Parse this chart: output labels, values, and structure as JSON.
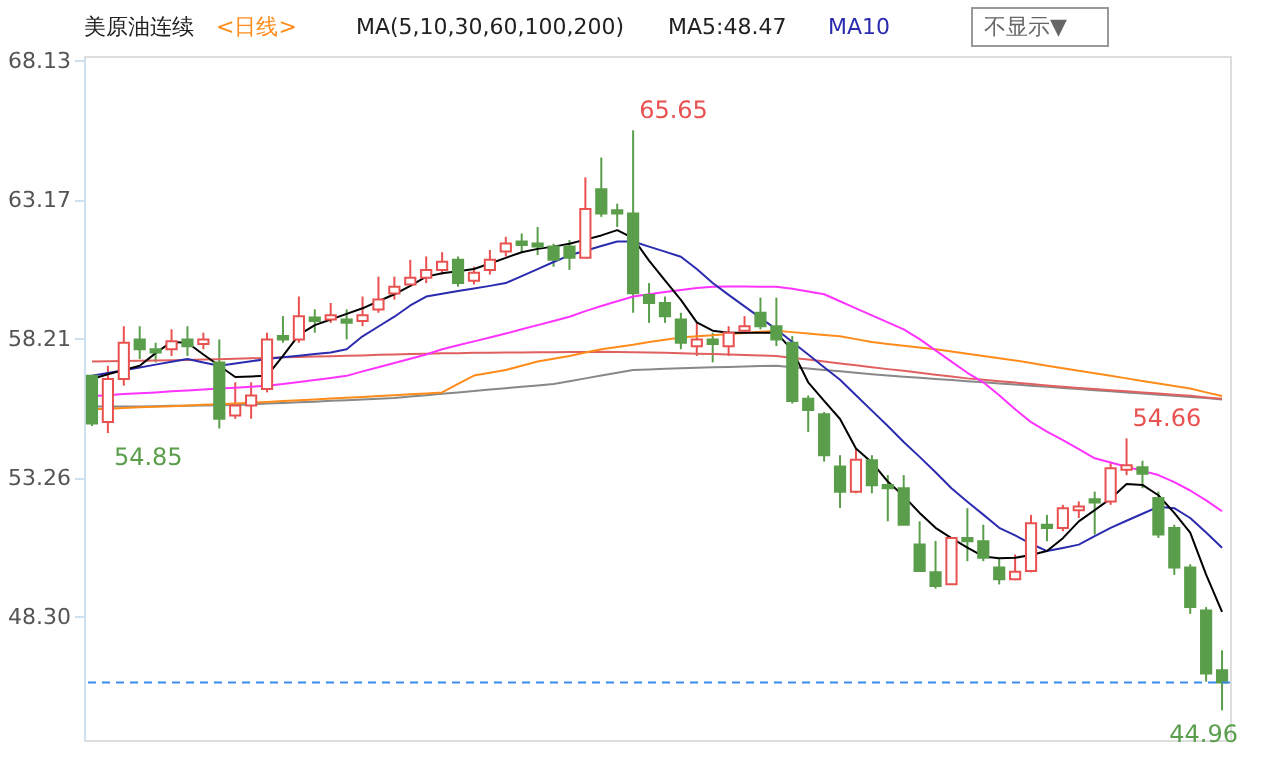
{
  "chart_data": {
    "type": "candlestick",
    "title": "美原油连续",
    "annotations": [
      "<日线>",
      "MA(5,10,30,60,100,200)",
      "MA5:48.47",
      "MA10",
      "不显示▼",
      "65.65",
      "54.85",
      "54.66",
      "44.96"
    ],
    "categories": [
      null,
      null,
      null,
      null,
      null,
      null,
      null,
      null,
      null,
      null,
      null,
      null,
      null,
      null,
      null,
      null,
      null,
      null,
      null,
      null,
      null,
      null,
      null,
      null,
      null,
      null,
      null,
      null,
      null,
      null,
      null,
      null,
      null,
      null,
      null,
      null,
      null,
      null,
      null,
      null,
      null,
      null,
      null,
      null,
      null,
      null,
      null,
      null,
      null,
      null,
      null,
      null,
      null,
      null,
      null,
      null,
      null,
      null,
      null,
      null,
      null,
      null,
      null,
      null,
      null,
      null,
      null,
      null,
      null,
      null,
      null,
      null
    ],
    "ohlc": [
      [
        56.89,
        56.9,
        55.1,
        55.19
      ],
      [
        55.24,
        57.25,
        54.85,
        56.78
      ],
      [
        56.78,
        58.66,
        56.54,
        58.07
      ],
      [
        58.19,
        58.66,
        57.49,
        57.84
      ],
      [
        57.84,
        58.07,
        57.37,
        57.72
      ],
      [
        57.84,
        58.55,
        57.6,
        58.12
      ],
      [
        58.19,
        58.66,
        57.6,
        57.95
      ],
      [
        58.03,
        58.43,
        57.84,
        58.19
      ],
      [
        57.37,
        58.19,
        55.01,
        55.36
      ],
      [
        55.48,
        56.66,
        55.36,
        55.83
      ],
      [
        55.83,
        56.66,
        55.36,
        56.19
      ],
      [
        56.42,
        58.43,
        56.3,
        58.19
      ],
      [
        58.31,
        59.02,
        58.07,
        58.19
      ],
      [
        58.19,
        59.72,
        58.07,
        59.02
      ],
      [
        58.97,
        59.26,
        58.43,
        58.85
      ],
      [
        58.9,
        59.49,
        58.78,
        59.05
      ],
      [
        58.9,
        59.26,
        58.19,
        58.78
      ],
      [
        58.85,
        59.72,
        58.66,
        59.05
      ],
      [
        59.26,
        60.43,
        59.14,
        59.61
      ],
      [
        59.83,
        60.43,
        59.61,
        60.07
      ],
      [
        60.15,
        61.03,
        60.07,
        60.39
      ],
      [
        60.39,
        61.15,
        60.2,
        60.67
      ],
      [
        60.67,
        61.3,
        60.5,
        60.96
      ],
      [
        61.03,
        61.15,
        60.07,
        60.2
      ],
      [
        60.28,
        60.78,
        60.15,
        60.57
      ],
      [
        60.67,
        61.38,
        60.5,
        61.03
      ],
      [
        61.33,
        61.85,
        61.15,
        61.61
      ],
      [
        61.68,
        61.97,
        61.27,
        61.56
      ],
      [
        61.61,
        62.2,
        61.2,
        61.5
      ],
      [
        61.5,
        61.6,
        60.78,
        61.03
      ],
      [
        61.5,
        61.73,
        60.67,
        61.1
      ],
      [
        61.1,
        63.97,
        61.1,
        62.84
      ],
      [
        63.55,
        64.68,
        62.56,
        62.68
      ],
      [
        62.8,
        63.03,
        62.2,
        62.68
      ],
      [
        62.68,
        65.65,
        59.14,
        59.84
      ],
      [
        59.77,
        60.2,
        58.78,
        59.49
      ],
      [
        59.49,
        59.72,
        58.78,
        59.02
      ],
      [
        58.9,
        59.14,
        57.84,
        58.07
      ],
      [
        57.95,
        58.78,
        57.6,
        58.19
      ],
      [
        58.19,
        58.43,
        57.37,
        58.03
      ],
      [
        57.95,
        58.66,
        57.6,
        58.43
      ],
      [
        58.5,
        59.02,
        58.43,
        58.66
      ],
      [
        59.14,
        59.68,
        58.55,
        58.66
      ],
      [
        58.66,
        59.68,
        57.95,
        58.19
      ],
      [
        58.07,
        58.31,
        55.9,
        55.99
      ],
      [
        56.07,
        56.19,
        54.89,
        55.67
      ],
      [
        55.52,
        55.6,
        53.83,
        54.06
      ],
      [
        53.66,
        54.06,
        52.18,
        52.76
      ],
      [
        52.76,
        54.3,
        52.7,
        53.9
      ],
      [
        53.88,
        54.06,
        52.7,
        52.99
      ],
      [
        53.0,
        53.35,
        51.7,
        52.88
      ],
      [
        52.88,
        53.35,
        51.58,
        51.58
      ],
      [
        50.87,
        51.7,
        49.93,
        49.93
      ],
      [
        49.88,
        51.0,
        49.3,
        49.39
      ],
      [
        49.46,
        51.11,
        49.46,
        51.11
      ],
      [
        51.11,
        52.17,
        50.28,
        50.99
      ],
      [
        50.99,
        51.58,
        50.28,
        50.4
      ],
      [
        50.05,
        50.4,
        49.45,
        49.63
      ],
      [
        49.63,
        50.52,
        49.6,
        49.9
      ],
      [
        49.93,
        51.93,
        49.88,
        51.63
      ],
      [
        51.58,
        51.93,
        50.99,
        51.46
      ],
      [
        51.46,
        52.29,
        51.35,
        52.17
      ],
      [
        52.1,
        52.41,
        51.82,
        52.23
      ],
      [
        52.49,
        52.76,
        51.23,
        52.37
      ],
      [
        52.41,
        53.83,
        52.29,
        53.59
      ],
      [
        53.54,
        54.66,
        53.35,
        53.7
      ],
      [
        53.63,
        53.86,
        52.88,
        53.4
      ],
      [
        52.53,
        52.76,
        51.11,
        51.23
      ],
      [
        51.46,
        51.58,
        49.79,
        50.05
      ],
      [
        50.05,
        50.17,
        48.4,
        48.64
      ],
      [
        48.52,
        48.64,
        45.98,
        46.27
      ],
      [
        46.39,
        47.1,
        44.96,
        45.95
      ]
    ],
    "colors": [
      "#5a9e4b",
      "#e8514f",
      "#e8514f",
      "#5a9e4b",
      "#5a9e4b",
      "#e8514f",
      "#5a9e4b",
      "#e8514f",
      "#5a9e4b",
      "#e8514f",
      "#e8514f",
      "#e8514f",
      "#5a9e4b",
      "#e8514f",
      "#5a9e4b",
      "#e8514f",
      "#5a9e4b",
      "#e8514f",
      "#e8514f",
      "#e8514f",
      "#e8514f",
      "#e8514f",
      "#e8514f",
      "#5a9e4b",
      "#e8514f",
      "#e8514f",
      "#e8514f",
      "#5a9e4b",
      "#5a9e4b",
      "#5a9e4b",
      "#5a9e4b",
      "#e8514f",
      "#5a9e4b",
      "#5a9e4b",
      "#5a9e4b",
      "#5a9e4b",
      "#5a9e4b",
      "#5a9e4b",
      "#e8514f",
      "#5a9e4b",
      "#e8514f",
      "#e8514f",
      "#5a9e4b",
      "#5a9e4b",
      "#5a9e4b",
      "#5a9e4b",
      "#5a9e4b",
      "#5a9e4b",
      "#e8514f",
      "#5a9e4b",
      "#5a9e4b",
      "#5a9e4b",
      "#5a9e4b",
      "#5a9e4b",
      "#e8514f",
      "#5a9e4b",
      "#5a9e4b",
      "#5a9e4b",
      "#e8514f",
      "#e8514f",
      "#5a9e4b",
      "#e8514f",
      "#e8514f",
      "#5a9e4b",
      "#e8514f",
      "#e8514f",
      "#5a9e4b",
      "#5a9e4b",
      "#5a9e4b",
      "#5a9e4b",
      "#5a9e4b",
      "#5a9e4b"
    ],
    "series": [
      {
        "type": "line",
        "color": "#888888",
        "values": [
          55.8,
          55.8,
          55.8,
          55.8,
          55.81,
          55.82,
          55.82,
          55.83,
          55.84,
          55.85,
          55.87,
          55.9,
          55.92,
          55.95,
          55.97,
          56.0,
          56.02,
          56.05,
          56.07,
          56.1,
          56.15,
          56.2,
          56.25,
          56.3,
          56.35,
          56.4,
          56.45,
          56.5,
          56.55,
          56.6,
          56.7,
          56.8,
          56.9,
          57.0,
          57.1,
          57.12,
          57.14,
          57.16,
          57.18,
          57.2,
          57.21,
          57.22,
          57.24,
          57.25,
          57.2,
          57.15,
          57.1,
          57.05,
          57.0,
          56.95,
          56.9,
          56.86,
          56.82,
          56.78,
          56.74,
          56.7,
          56.66,
          56.62,
          56.58,
          56.54,
          56.5,
          56.46,
          56.42,
          56.38,
          56.34,
          56.3,
          56.26,
          56.22,
          56.18,
          56.14,
          56.1,
          56.05
        ]
      },
      {
        "type": "line",
        "color": "#e06060",
        "values": [
          57.4,
          57.41,
          57.42,
          57.43,
          57.44,
          57.45,
          57.46,
          57.47,
          57.48,
          57.5,
          57.52,
          57.53,
          57.55,
          57.56,
          57.58,
          57.59,
          57.61,
          57.62,
          57.64,
          57.65,
          57.67,
          57.68,
          57.7,
          57.7,
          57.71,
          57.71,
          57.72,
          57.72,
          57.73,
          57.73,
          57.74,
          57.74,
          57.75,
          57.74,
          57.73,
          57.72,
          57.71,
          57.7,
          57.68,
          57.67,
          57.65,
          57.63,
          57.62,
          57.6,
          57.53,
          57.47,
          57.4,
          57.33,
          57.27,
          57.2,
          57.13,
          57.07,
          57.0,
          56.93,
          56.87,
          56.8,
          56.75,
          56.7,
          56.65,
          56.6,
          56.55,
          56.5,
          56.46,
          56.42,
          56.38,
          56.34,
          56.3,
          56.26,
          56.22,
          56.18,
          56.12,
          56.07
        ]
      },
      {
        "type": "line",
        "color": "#ff8c1a",
        "values": [
          55.7,
          55.72,
          55.74,
          55.77,
          55.79,
          55.81,
          55.83,
          55.86,
          55.88,
          55.9,
          55.93,
          55.96,
          55.99,
          56.02,
          56.05,
          56.08,
          56.11,
          56.14,
          56.17,
          56.2,
          56.23,
          56.26,
          56.3,
          56.6,
          56.9,
          57.0,
          57.1,
          57.25,
          57.4,
          57.5,
          57.6,
          57.72,
          57.84,
          57.92,
          58.0,
          58.1,
          58.18,
          58.26,
          58.3,
          58.34,
          58.38,
          58.42,
          58.46,
          58.5,
          58.45,
          58.4,
          58.35,
          58.3,
          58.2,
          58.1,
          58.03,
          57.96,
          57.9,
          57.84,
          57.76,
          57.68,
          57.6,
          57.52,
          57.44,
          57.35,
          57.25,
          57.16,
          57.07,
          56.98,
          56.89,
          56.8,
          56.71,
          56.62,
          56.53,
          56.44,
          56.3,
          56.17
        ]
      },
      {
        "type": "line",
        "color": "#ff33ff",
        "values": [
          56.17,
          56.2,
          56.24,
          56.27,
          56.3,
          56.34,
          56.37,
          56.4,
          56.44,
          56.47,
          56.5,
          56.54,
          56.6,
          56.67,
          56.74,
          56.81,
          56.89,
          57.05,
          57.2,
          57.35,
          57.5,
          57.65,
          57.84,
          57.98,
          58.12,
          58.26,
          58.4,
          58.55,
          58.7,
          58.85,
          59.0,
          59.2,
          59.38,
          59.55,
          59.72,
          59.8,
          59.88,
          59.95,
          60.02,
          60.07,
          60.08,
          60.08,
          60.07,
          60.07,
          60.0,
          59.9,
          59.8,
          59.55,
          59.3,
          59.05,
          58.8,
          58.55,
          58.2,
          57.8,
          57.4,
          57.0,
          56.66,
          56.2,
          55.7,
          55.24,
          54.9,
          54.6,
          54.28,
          53.95,
          53.8,
          53.65,
          53.5,
          53.35,
          53.1,
          52.8,
          52.45,
          52.06
        ]
      },
      {
        "type": "line",
        "color": "#2b2bb0",
        "values": [
          56.89,
          56.99,
          57.09,
          57.19,
          57.29,
          57.39,
          57.49,
          57.37,
          57.25,
          57.33,
          57.41,
          57.49,
          57.55,
          57.61,
          57.67,
          57.72,
          57.84,
          58.3,
          58.65,
          59.0,
          59.4,
          59.72,
          59.82,
          59.92,
          60.01,
          60.1,
          60.2,
          60.45,
          60.7,
          60.95,
          61.19,
          61.35,
          61.52,
          61.68,
          61.68,
          61.5,
          61.32,
          61.14,
          60.7,
          60.2,
          59.78,
          59.37,
          58.96,
          58.55,
          58.1,
          57.65,
          57.2,
          56.75,
          56.2,
          55.65,
          55.1,
          54.53,
          54.0,
          53.45,
          52.88,
          52.4,
          51.94,
          51.47,
          51.2,
          50.9,
          50.64,
          50.75,
          50.87,
          51.17,
          51.47,
          51.72,
          51.97,
          52.22,
          52.17,
          51.82,
          51.3,
          50.76
        ]
      },
      {
        "type": "line",
        "color": "#000000",
        "values": [
          56.78,
          56.95,
          57.1,
          57.25,
          57.7,
          58.1,
          58.07,
          57.65,
          57.25,
          56.85,
          56.87,
          56.89,
          57.6,
          58.35,
          58.7,
          58.9,
          59.1,
          59.3,
          59.55,
          59.8,
          60.1,
          60.43,
          60.55,
          60.62,
          60.7,
          60.9,
          61.1,
          61.3,
          61.42,
          61.5,
          61.6,
          61.75,
          61.9,
          62.09,
          61.8,
          61.0,
          60.3,
          59.6,
          58.8,
          58.5,
          58.43,
          58.43,
          58.43,
          58.43,
          57.8,
          56.66,
          56.0,
          55.35,
          54.3,
          53.8,
          53.12,
          52.6,
          52.0,
          51.47,
          51.1,
          50.76,
          50.45,
          50.38,
          50.4,
          50.5,
          50.64,
          51.1,
          51.7,
          52.1,
          52.51,
          53.03,
          53.0,
          52.63,
          52.0,
          51.3,
          49.8,
          48.47
        ]
      }
    ],
    "ylim": [
      43.9,
      68.3
    ],
    "yticks": [
      {
        "value": 68.13,
        "label": "68.13"
      },
      {
        "value": 63.17,
        "label": "63.17"
      },
      {
        "value": 58.21,
        "label": "58.21"
      },
      {
        "value": 53.26,
        "label": "53.26"
      },
      {
        "value": 48.3,
        "label": "48.30"
      }
    ],
    "ref_lines": [
      {
        "axis": "y",
        "value": 45.95,
        "color": "#3b8beb",
        "line_style": "dashed"
      }
    ],
    "tick_labels": "y",
    "grid": false,
    "line_style": "solid",
    "marker": "none"
  }
}
